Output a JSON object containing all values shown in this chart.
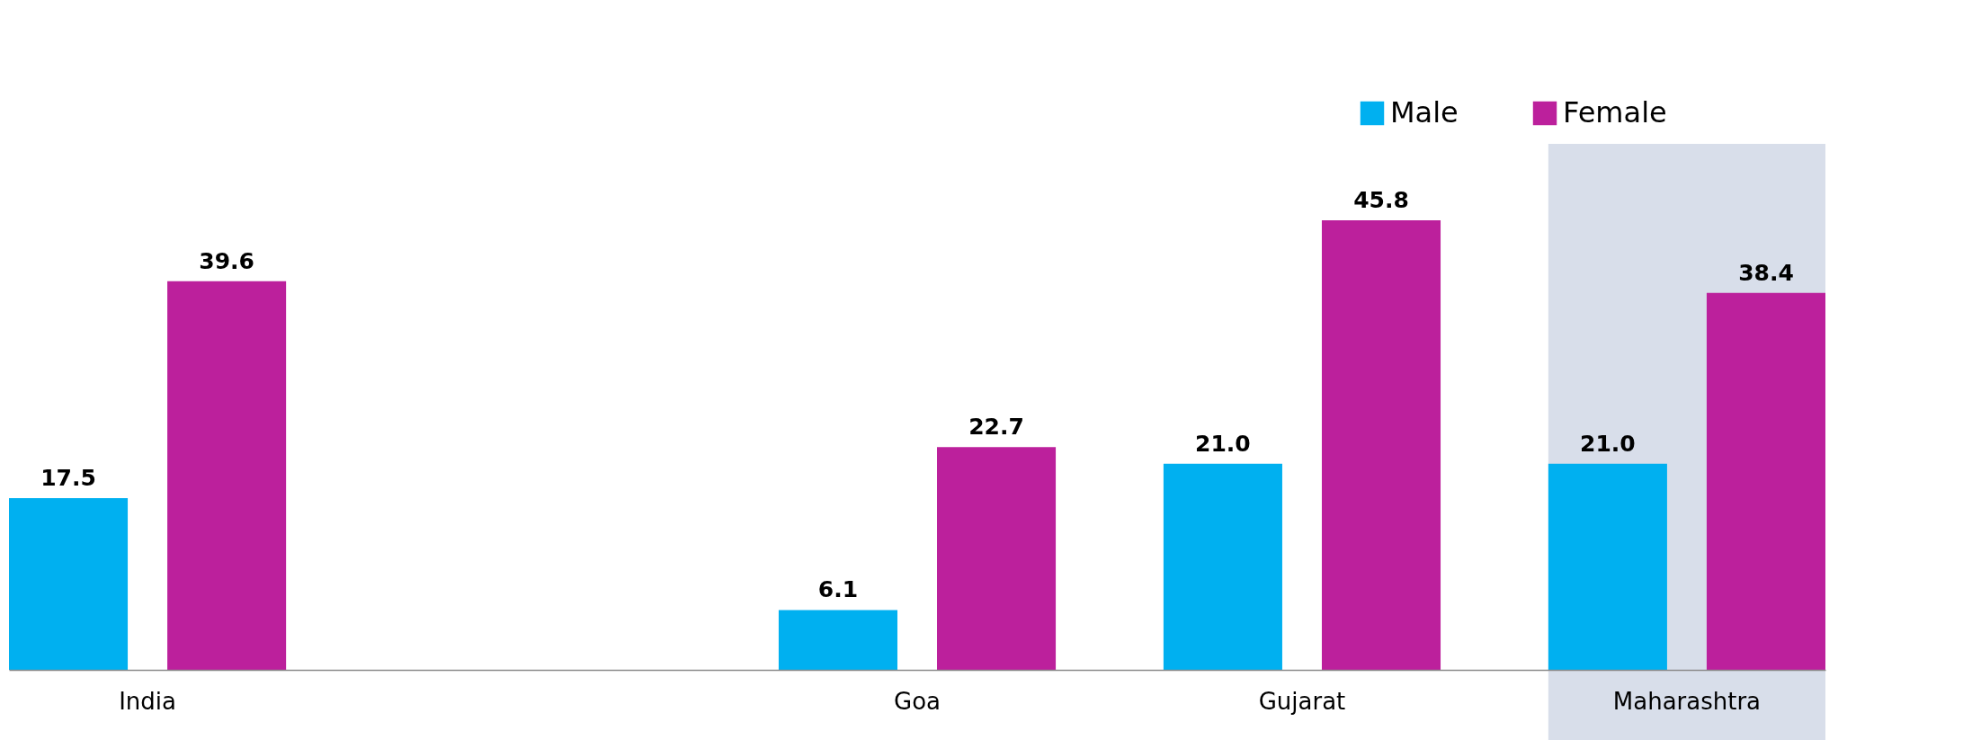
{
  "chart_data": {
    "type": "bar",
    "categories": [
      "India",
      null,
      "Goa",
      "Gujarat",
      "Maharashtra"
    ],
    "series": [
      {
        "name": "Male",
        "color": "#00b0f0",
        "values": [
          17.5,
          null,
          6.1,
          21.0,
          21.0
        ],
        "value_labels": [
          "17.5",
          null,
          "6.1",
          "21.0",
          "21.0"
        ]
      },
      {
        "name": "Female",
        "color": "#bc209c",
        "values": [
          39.6,
          null,
          22.7,
          45.8,
          38.4
        ],
        "value_labels": [
          "39.6",
          null,
          "22.7",
          "45.8",
          "38.4"
        ]
      }
    ],
    "bands": [
      {
        "axis": "x",
        "from": "Maharashtra",
        "to": "Maharashtra",
        "color": "#d6dce9"
      }
    ],
    "legend": "top right"
  }
}
